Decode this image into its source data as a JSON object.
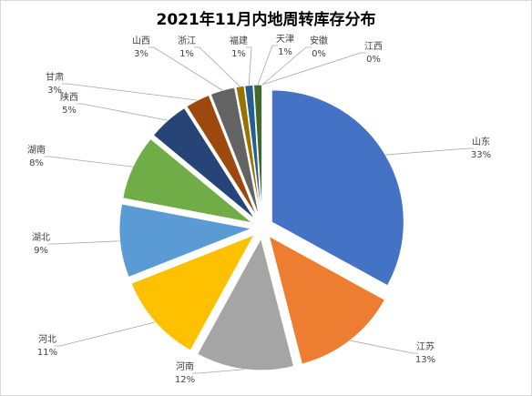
{
  "chart_data": {
    "type": "pie",
    "title": "2021年11月内地周转库存分布",
    "categories": [
      "山东",
      "江苏",
      "河南",
      "河北",
      "湖北",
      "湖南",
      "陕西",
      "甘肃",
      "山西",
      "浙江",
      "福建",
      "天津",
      "安徽",
      "江西"
    ],
    "values": [
      33,
      13,
      12,
      11,
      9,
      8,
      5,
      3,
      3,
      1,
      1,
      1,
      0,
      0
    ],
    "value_labels": [
      "33%",
      "13%",
      "12%",
      "11%",
      "9%",
      "8%",
      "5%",
      "3%",
      "3%",
      "1%",
      "1%",
      "1%",
      "0%",
      "0%"
    ],
    "colors": [
      "#4472c4",
      "#ed7d31",
      "#a5a5a5",
      "#ffc000",
      "#5b9bd5",
      "#70ad47",
      "#264478",
      "#9e480e",
      "#636363",
      "#997300",
      "#255e91",
      "#43682b",
      "#698ed0",
      "#f1975a"
    ]
  }
}
